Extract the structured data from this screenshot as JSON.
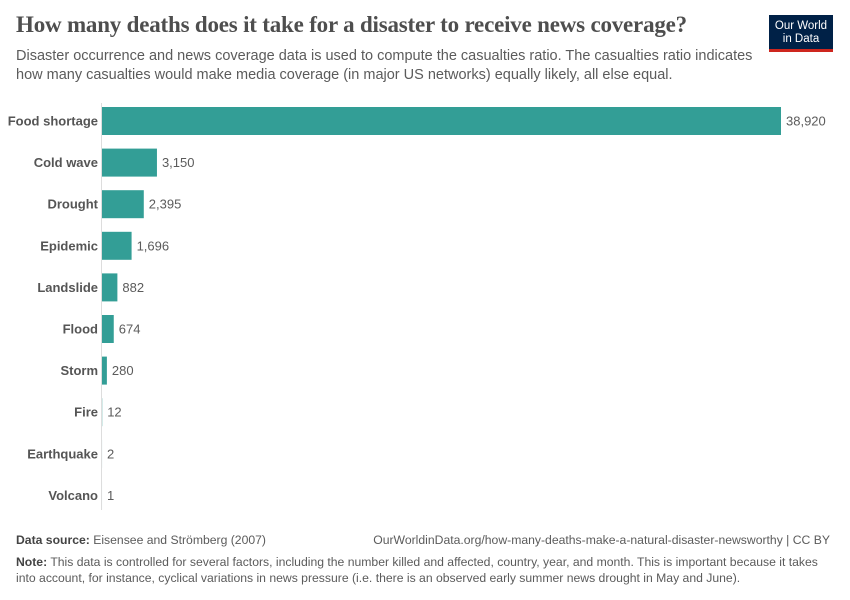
{
  "header": {
    "title": "How many deaths does it take for a disaster to receive news coverage?",
    "subtitle": "Disaster occurrence and news coverage data is used to compute the casualties ratio. The casualties ratio indicates how many casualties would make media coverage (in major US networks) equally likely, all else equal.",
    "logo_line1": "Our World",
    "logo_line2": "in Data"
  },
  "chart_data": {
    "type": "bar",
    "orientation": "horizontal",
    "categories": [
      "Food shortage",
      "Cold wave",
      "Drought",
      "Epidemic",
      "Landslide",
      "Flood",
      "Storm",
      "Fire",
      "Earthquake",
      "Volcano"
    ],
    "values": [
      38920,
      3150,
      2395,
      1696,
      882,
      674,
      280,
      12,
      2,
      1
    ],
    "value_labels": [
      "38,920",
      "3,150",
      "2,395",
      "1,696",
      "882",
      "674",
      "280",
      "12",
      "2",
      "1"
    ],
    "xlim": [
      0,
      38920
    ],
    "grid": false,
    "color": "#339e96"
  },
  "footer": {
    "source_label": "Data source:",
    "source": "Eisensee and Strömberg (2007)",
    "url": "OurWorldinData.org/how-many-deaths-make-a-natural-disaster-newsworthy | CC BY",
    "note_label": "Note:",
    "note": "This data is controlled for several factors, including the number killed and affected, country, year, and month. This is important because it takes into account, for instance, cyclical variations in news pressure (i.e. there is an observed early summer news drought in May and June)."
  }
}
